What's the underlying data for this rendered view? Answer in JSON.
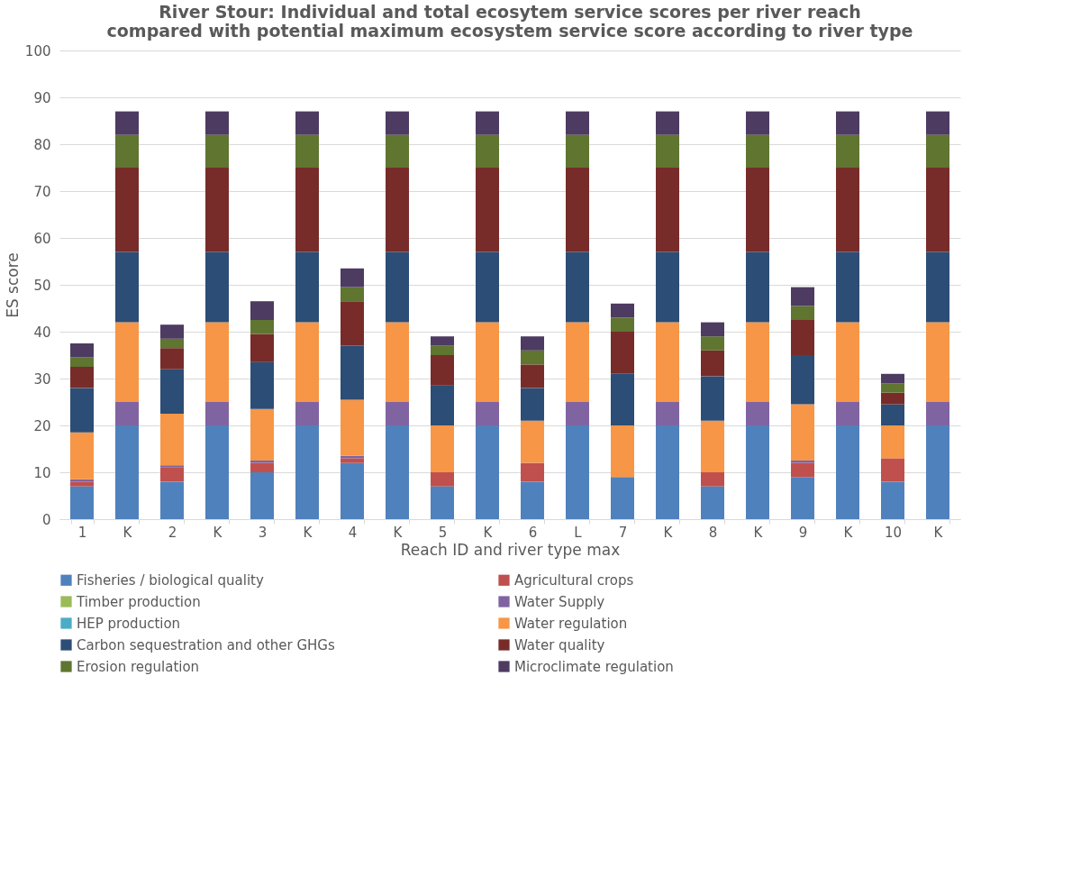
{
  "chart_data": {
    "type": "bar",
    "stacked": true,
    "title": "River Stour: Individual and total ecosytem service scores per river reach compared with potential maximum ecosystem service score according to river type",
    "xlabel": "Reach ID and river type max",
    "ylabel": "ES score",
    "categories": [
      "1",
      "K",
      "2",
      "K",
      "3",
      "K",
      "4",
      "K",
      "5",
      "K",
      "6",
      "L",
      "7",
      "K",
      "8",
      "K",
      "9",
      "K",
      "10",
      "K"
    ],
    "ylim": [
      0,
      100
    ],
    "yticks": [
      0,
      10,
      20,
      30,
      40,
      50,
      60,
      70,
      80,
      90,
      100
    ],
    "grid": "y",
    "legend": "bottom",
    "series": [
      {
        "name": "Fisheries / biological quality",
        "color": "#4f81bd",
        "values": [
          7,
          20,
          8,
          20,
          10,
          20,
          12,
          20,
          7,
          20,
          8,
          20,
          9,
          20,
          7,
          20,
          9,
          20,
          8,
          20
        ]
      },
      {
        "name": "Agricultural crops",
        "color": "#c0504d",
        "values": [
          1,
          0,
          3,
          0,
          2,
          0,
          1,
          0,
          3,
          0,
          4,
          0,
          0,
          0,
          3,
          0,
          3,
          0,
          5,
          0
        ]
      },
      {
        "name": "Timber production",
        "color": "#9bbb59",
        "values": [
          0,
          0,
          0,
          0,
          0,
          0,
          0,
          0,
          0,
          0,
          0,
          0,
          0,
          0,
          0,
          0,
          0,
          0,
          0,
          0
        ]
      },
      {
        "name": "Water Supply",
        "color": "#8064a2",
        "values": [
          0.5,
          5,
          0.5,
          5,
          0.5,
          5,
          0.5,
          5,
          0,
          5,
          0,
          5,
          0,
          5,
          0,
          5,
          0.5,
          5,
          0,
          5
        ]
      },
      {
        "name": "HEP production",
        "color": "#4bacc6",
        "values": [
          0,
          0,
          0,
          0,
          0,
          0,
          0,
          0,
          0,
          0,
          0,
          0,
          0,
          0,
          0,
          0,
          0,
          0,
          0,
          0
        ]
      },
      {
        "name": "Water regulation",
        "color": "#f79646",
        "values": [
          10,
          17,
          11,
          17,
          11,
          17,
          12,
          17,
          10,
          17,
          9,
          17,
          11,
          17,
          11,
          17,
          12,
          17,
          7,
          17
        ]
      },
      {
        "name": "Carbon sequestration and other GHGs",
        "color": "#2c4d75",
        "values": [
          9.5,
          15,
          9.5,
          15,
          10,
          15,
          11.5,
          15,
          8.5,
          15,
          7,
          15,
          11,
          15,
          9.5,
          15,
          10.5,
          15,
          4.5,
          15
        ]
      },
      {
        "name": "Water quality",
        "color": "#772c2a",
        "values": [
          4.5,
          18,
          4.5,
          18,
          6,
          18,
          9.5,
          18,
          6.5,
          18,
          5,
          18,
          9,
          18,
          5.5,
          18,
          7.5,
          18,
          2.5,
          18
        ]
      },
      {
        "name": "Erosion regulation",
        "color": "#5f7530",
        "values": [
          2,
          7,
          2,
          7,
          3,
          7,
          3,
          7,
          2,
          7,
          3,
          7,
          3,
          7,
          3,
          7,
          3,
          7,
          2,
          7
        ]
      },
      {
        "name": "Microclimate regulation",
        "color": "#4d3b62",
        "values": [
          3,
          5,
          3,
          5,
          4,
          5,
          4,
          5,
          2,
          5,
          3,
          5,
          3,
          5,
          3,
          5,
          4,
          5,
          2,
          5
        ]
      }
    ]
  }
}
